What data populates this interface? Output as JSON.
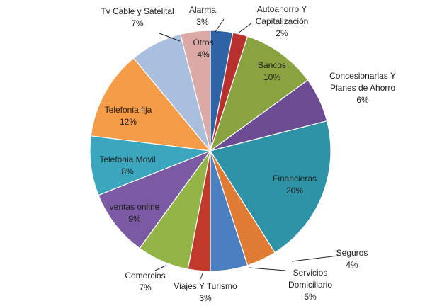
{
  "chart_data": {
    "type": "pie",
    "title": "",
    "legend": "none",
    "slices": [
      {
        "name": "Alarma",
        "pct_label": "3%",
        "value": 3,
        "color": "#2e64a6",
        "label_lines": [
          "Alarma",
          "3%"
        ]
      },
      {
        "name": "Autoahorro Y Capitalización",
        "pct_label": "2%",
        "value": 2,
        "color": "#b8312f",
        "label_lines": [
          "Autoahorro Y",
          "Capitalización",
          "2%"
        ]
      },
      {
        "name": "Bancos",
        "pct_label": "10%",
        "value": 10,
        "color": "#8aa341",
        "label_lines": [
          "Bancos",
          "10%"
        ]
      },
      {
        "name": "Concesionarias Y Planes de Ahorro",
        "pct_label": "6%",
        "value": 6,
        "color": "#6b4c92",
        "label_lines": [
          "Concesionarias Y",
          "Planes de Ahorro",
          "6%"
        ]
      },
      {
        "name": "Financieras",
        "pct_label": "20%",
        "value": 20,
        "color": "#2e93a6",
        "label_lines": [
          "Financieras",
          "20%"
        ]
      },
      {
        "name": "Seguros",
        "pct_label": "4%",
        "value": 4,
        "color": "#e07b34",
        "label_lines": [
          "Seguros",
          "4%"
        ]
      },
      {
        "name": "Servicios Domiciliario",
        "pct_label": "5%",
        "value": 5,
        "color": "#4a7fc1",
        "label_lines": [
          "Servicios",
          "Domiciliario",
          "5%"
        ]
      },
      {
        "name": "Viajes Y Turismo",
        "pct_label": "3%",
        "value": 3,
        "color": "#c0392b",
        "label_lines": [
          "Viajes Y Turismo",
          "3%"
        ]
      },
      {
        "name": "Comercios",
        "pct_label": "7%",
        "value": 7,
        "color": "#93b446",
        "label_lines": [
          "Comercios",
          "7%"
        ]
      },
      {
        "name": "ventas online",
        "pct_label": "9%",
        "value": 9,
        "color": "#7a5aa3",
        "label_lines": [
          "ventas online",
          "9%"
        ]
      },
      {
        "name": "Telefonia Movil",
        "pct_label": "8%",
        "value": 8,
        "color": "#3ba7bf",
        "label_lines": [
          "Telefonia Movil",
          "8%"
        ]
      },
      {
        "name": "Telefonia fija",
        "pct_label": "12%",
        "value": 12,
        "color": "#f59c48",
        "label_lines": [
          "Telefonia fija",
          "12%"
        ]
      },
      {
        "name": "Tv Cable y Satelital",
        "pct_label": "7%",
        "value": 7,
        "color": "#a9bfdd",
        "label_lines": [
          "Tv Cable y Satelital",
          "7%"
        ]
      },
      {
        "name": "Otros",
        "pct_label": "4%",
        "value": 4,
        "color": "#dcaaa6",
        "label_lines": [
          "Otros",
          "4%"
        ]
      }
    ]
  }
}
